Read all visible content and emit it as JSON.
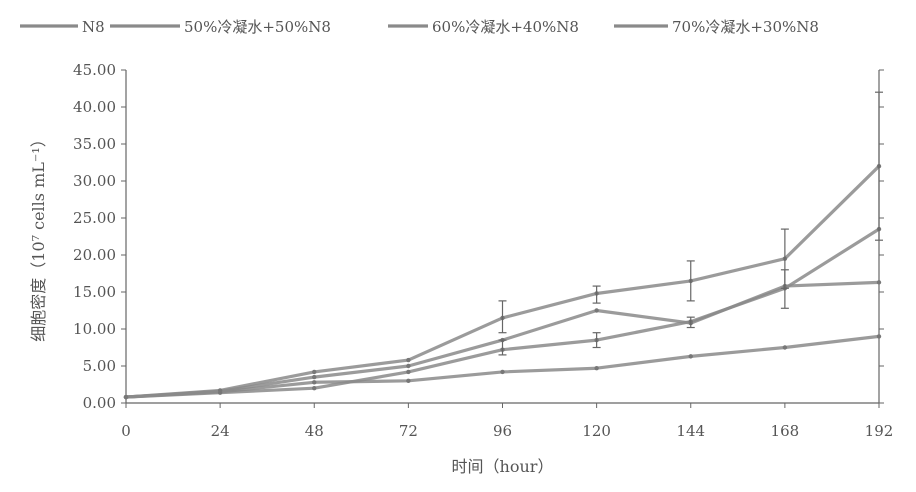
{
  "chart_data": {
    "type": "line",
    "xlabel": "时间（hour）",
    "ylabel": "细胞密度（10⁷ cells mL⁻¹）",
    "x": [
      0,
      24,
      48,
      72,
      96,
      120,
      144,
      168,
      192
    ],
    "x_ticks": [
      "0",
      "24",
      "48",
      "72",
      "96",
      "120",
      "144",
      "168",
      "192"
    ],
    "xlim": [
      0,
      192
    ],
    "ylim": [
      0,
      45
    ],
    "y_ticks": [
      "0.00",
      "5.00",
      "10.00",
      "15.00",
      "20.00",
      "25.00",
      "30.00",
      "35.00",
      "40.00",
      "45.00"
    ],
    "y_tick_values": [
      0,
      5,
      10,
      15,
      20,
      25,
      30,
      35,
      40,
      45
    ],
    "grid": false,
    "legend_position": "top",
    "series": [
      {
        "name": "N8",
        "values": [
          0.8,
          1.5,
          2.8,
          3.0,
          4.2,
          4.7,
          6.3,
          7.5,
          9.0
        ],
        "color": "#8a8a8a"
      },
      {
        "name": "50%冷凝水+50%N8",
        "values": [
          0.8,
          1.6,
          3.5,
          5.0,
          8.5,
          12.5,
          10.8,
          15.8,
          16.3
        ],
        "color": "#8a8a8a"
      },
      {
        "name": "60%冷凝水+40%N8",
        "values": [
          0.8,
          1.4,
          2.0,
          4.2,
          7.2,
          8.5,
          11.0,
          15.5,
          23.5
        ],
        "color": "#8a8a8a"
      },
      {
        "name": "70%冷凝水+30%N8",
        "values": [
          0.8,
          1.7,
          4.2,
          5.8,
          11.5,
          14.8,
          16.5,
          19.5,
          32.0
        ],
        "color": "#8a8a8a"
      }
    ],
    "error_bars": [
      {
        "x": 96,
        "low": 9.5,
        "high": 13.8
      },
      {
        "x": 96,
        "low": 6.5,
        "high": 8.5
      },
      {
        "x": 120,
        "low": 13.5,
        "high": 15.8
      },
      {
        "x": 120,
        "low": 7.5,
        "high": 9.5
      },
      {
        "x": 144,
        "low": 13.8,
        "high": 19.2
      },
      {
        "x": 144,
        "low": 10.2,
        "high": 11.6
      },
      {
        "x": 168,
        "low": 15.5,
        "high": 23.5
      },
      {
        "x": 168,
        "low": 12.8,
        "high": 18.0
      },
      {
        "x": 192,
        "low": 22.0,
        "high": 42.0
      }
    ]
  }
}
